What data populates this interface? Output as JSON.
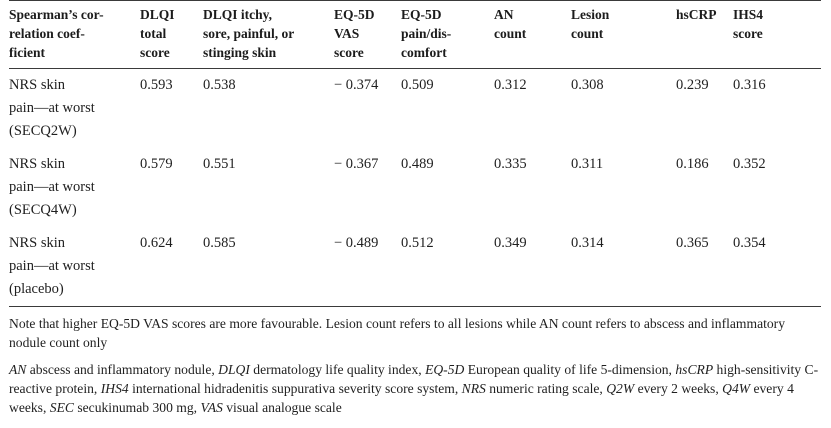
{
  "table": {
    "headers": [
      "Spearman’s cor-\nrelation coef-\nficient",
      "DLQI\ntotal\nscore",
      "DLQI itchy,\nsore, painful, or\nstinging skin",
      "EQ-5D\nVAS\nscore",
      "EQ-5D\npain/dis-\ncomfort",
      "AN\ncount",
      "Lesion\ncount",
      "hsCRP",
      "IHS4\nscore"
    ],
    "rows": [
      {
        "label": "NRS skin\n  pain—at worst\n  (SECQ2W)",
        "values": [
          "0.593",
          "0.538",
          "− 0.374",
          "0.509",
          "0.312",
          "0.308",
          "0.239",
          "0.316"
        ]
      },
      {
        "label": "NRS skin\n  pain—at worst\n  (SECQ4W)",
        "values": [
          "0.579",
          "0.551",
          "− 0.367",
          "0.489",
          "0.335",
          "0.311",
          "0.186",
          "0.352"
        ]
      },
      {
        "label": "NRS skin\n  pain—at worst\n  (placebo)",
        "values": [
          "0.624",
          "0.585",
          "− 0.489",
          "0.512",
          "0.349",
          "0.314",
          "0.365",
          "0.354"
        ]
      }
    ]
  },
  "note": "Note that higher EQ-5D VAS scores are more favourable. Lesion count refers to all lesions while AN count refers to abscess and inflammatory nodule count only",
  "abbreviations": [
    {
      "key": "AN",
      "text": " abscess and inflammatory nodule, "
    },
    {
      "key": "DLQI",
      "text": " dermatology life quality index, "
    },
    {
      "key": "EQ-5D",
      "text": " European quality of life 5-dimension, "
    },
    {
      "key": "hsCRP",
      "text": " high-sensitivity C-reactive protein, "
    },
    {
      "key": "IHS4",
      "text": " international hidradenitis suppurativa severity score system, "
    },
    {
      "key": "NRS",
      "text": " numeric rating scale, "
    },
    {
      "key": "Q2W",
      "text": " every 2 weeks, "
    },
    {
      "key": "Q4W",
      "text": " every 4 weeks, "
    },
    {
      "key": "SEC",
      "text": " secukinumab 300 mg, "
    },
    {
      "key": "VAS",
      "text": " visual analogue scale"
    }
  ]
}
